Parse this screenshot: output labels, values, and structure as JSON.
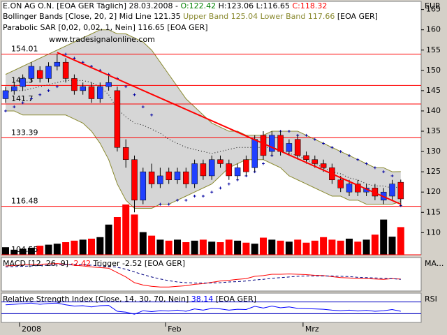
{
  "chart_data": {
    "type": "candlestick",
    "header": {
      "quote": "E.ON AG O.N. [EOA GER  Täglich] 28.03.2008 -",
      "open_text": "O:122.42",
      "hl_text": "H:123.06 L:116.65",
      "close_text": "C:118.32",
      "bb_text": "Bollinger Bands [Close, 20, 2] Mid Line 121.35",
      "bb_bands_text": "Upper Band 125.04 Lower Band 117.66",
      "bb_src": "[EOA GER]",
      "sar_text": "Parabolic SAR [0,02, 0,02, 1, Nein] 116.65 [EOA GER]"
    },
    "watermark": "www.tradesignalonline.com",
    "y_unit": "EUR",
    "ylim": [
      104.55,
      167
    ],
    "yticks": [
      110,
      115,
      120,
      125,
      130,
      135,
      140,
      145,
      150,
      155,
      160,
      165
    ],
    "levels": [
      154.01,
      146.3,
      141.7,
      133.39,
      116.48,
      104.55
    ],
    "x_labels": [
      {
        "index": 0,
        "label": "2008"
      },
      {
        "index": 17,
        "label": "Feb"
      },
      {
        "index": 33,
        "label": "Mrz"
      }
    ],
    "open": [
      143,
      145,
      146,
      148,
      150,
      148,
      151,
      152,
      148,
      145,
      146,
      143,
      146,
      145,
      131,
      128,
      118,
      125,
      122,
      125,
      123,
      125,
      122,
      127,
      124,
      128,
      127,
      124,
      128,
      126,
      134,
      130,
      134,
      130,
      133,
      129,
      128,
      127,
      126,
      123,
      120,
      122,
      120,
      121,
      118,
      119,
      122.42
    ],
    "high": [
      146,
      147,
      149,
      152,
      151,
      152,
      154,
      153,
      149,
      147,
      147,
      147,
      149,
      146,
      133,
      129,
      126,
      127,
      126,
      126,
      126,
      126,
      128,
      128,
      129,
      129,
      128,
      127,
      129,
      134,
      135,
      135,
      135,
      133,
      134,
      130,
      129,
      128,
      127,
      124,
      123,
      123,
      122,
      122,
      121,
      123,
      123.06
    ],
    "low": [
      142,
      144,
      145,
      147,
      147,
      147,
      150,
      147,
      144,
      144,
      142,
      142,
      145,
      130,
      126,
      115,
      117,
      121,
      121,
      122,
      122,
      121,
      121,
      123,
      123,
      126,
      123,
      123,
      124,
      125,
      128,
      129,
      129,
      129,
      128,
      127,
      126,
      125,
      122,
      120,
      119,
      119,
      119,
      118,
      117,
      118,
      116.65
    ],
    "close": [
      145,
      146,
      148,
      151,
      148,
      151,
      152,
      148,
      145,
      146,
      143,
      146,
      147,
      131,
      128,
      118,
      125,
      122,
      124,
      123,
      125,
      122,
      127,
      124,
      128,
      127,
      124,
      126,
      125,
      133,
      129,
      134,
      130,
      132,
      129,
      128,
      127,
      126,
      123,
      121,
      122,
      120,
      121,
      119,
      120,
      122,
      118.32
    ],
    "bull_color": "#2040ff",
    "bear_color": "#ff0000",
    "upper": [
      149,
      150,
      151,
      152,
      153,
      154,
      155,
      156,
      157,
      158,
      159,
      160,
      160,
      159,
      159,
      158,
      157,
      155,
      152,
      149,
      146,
      143,
      141,
      139,
      137,
      136,
      135,
      135,
      134,
      134,
      134,
      135,
      135,
      135,
      135,
      134,
      133,
      132,
      131,
      130,
      129,
      128,
      127,
      126,
      126,
      125,
      125.04
    ],
    "mid": [
      144.5,
      145,
      145,
      145.5,
      146,
      146.5,
      147,
      147.5,
      147.5,
      147.5,
      147,
      146,
      144,
      140.5,
      138.5,
      137,
      136.5,
      135.5,
      134.5,
      133,
      132,
      131,
      130.5,
      130,
      129.5,
      130,
      130.5,
      131,
      131,
      131,
      131,
      131,
      130.5,
      129.5,
      129,
      128,
      127,
      126,
      125,
      124.5,
      123.5,
      123,
      122,
      121.5,
      121.5,
      121,
      121.35
    ],
    "lower": [
      140,
      140,
      139,
      139,
      139,
      139,
      139,
      139,
      138,
      137,
      135,
      132,
      128,
      122,
      118,
      116,
      116,
      116,
      117,
      117,
      118,
      119,
      120,
      121,
      122,
      124,
      126,
      127,
      128,
      128,
      128,
      127,
      126,
      124,
      123,
      122,
      121,
      120,
      119,
      119,
      118,
      118,
      117,
      117,
      117,
      117,
      117.66
    ],
    "band_color": "#8a8a30",
    "band_fill": "#d6d6d6",
    "sar": [
      140,
      141,
      142,
      143,
      144,
      145,
      146,
      154,
      153,
      152,
      151,
      150,
      149,
      148,
      146,
      144,
      141,
      139,
      117,
      117,
      118,
      118,
      119,
      119,
      120,
      121,
      122,
      123,
      124,
      125,
      127,
      129,
      135,
      135,
      134,
      134,
      133,
      132,
      131,
      130,
      129,
      128,
      127,
      126,
      125,
      124,
      116.65
    ],
    "trendline": {
      "start": [
        6,
        154.4
      ],
      "end": [
        46,
        117
      ],
      "color": "#ff0000"
    },
    "volume": [
      15,
      10,
      12,
      14,
      18,
      20,
      22,
      25,
      28,
      30,
      32,
      35,
      60,
      75,
      100,
      80,
      45,
      38,
      30,
      28,
      30,
      25,
      28,
      30,
      26,
      25,
      30,
      28,
      24,
      22,
      34,
      30,
      28,
      26,
      30,
      24,
      28,
      35,
      30,
      28,
      32,
      26,
      30,
      40,
      70,
      36,
      55
    ],
    "macd": {
      "title": "MACD [12, 26, 9]",
      "value_text": "-2.42",
      "trigger_text": "Trigger -2.52",
      "src": "[EOA GER]",
      "axis_label": "MA...",
      "ylim": [
        -6,
        4
      ],
      "macd": [
        1.5,
        1.6,
        1.8,
        2.0,
        2.0,
        2.1,
        2.2,
        2.0,
        1.7,
        1.5,
        1.2,
        1.0,
        0.8,
        -0.5,
        -1.8,
        -3.5,
        -4.2,
        -4.6,
        -4.8,
        -4.8,
        -4.6,
        -4.4,
        -4.0,
        -3.8,
        -3.4,
        -3.0,
        -2.8,
        -2.5,
        -2.3,
        -1.6,
        -1.4,
        -1.0,
        -1.0,
        -0.9,
        -1.0,
        -1.1,
        -1.3,
        -1.4,
        -1.7,
        -2.0,
        -2.1,
        -2.3,
        -2.3,
        -2.4,
        -2.5,
        -2.3,
        -2.42
      ],
      "trigger": [
        1.2,
        1.3,
        1.4,
        1.5,
        1.6,
        1.7,
        1.8,
        1.9,
        1.9,
        1.8,
        1.7,
        1.5,
        1.4,
        1.1,
        0.5,
        -0.3,
        -1.1,
        -1.8,
        -2.4,
        -2.9,
        -3.3,
        -3.5,
        -3.6,
        -3.6,
        -3.6,
        -3.5,
        -3.3,
        -3.2,
        -3.0,
        -2.7,
        -2.5,
        -2.2,
        -2.0,
        -1.8,
        -1.6,
        -1.5,
        -1.5,
        -1.5,
        -1.5,
        -1.6,
        -1.7,
        -1.9,
        -2.0,
        -2.1,
        -2.2,
        -2.3,
        -2.52
      ]
    },
    "rsi": {
      "title": "Relative Strength Index [Close, 14, 30, 70, Nein]",
      "value_text": "38.14",
      "src": "[EOA GER]",
      "axis_label": "RSI",
      "ylim": [
        0,
        100
      ],
      "bounds": [
        30,
        70
      ],
      "values": [
        60,
        62,
        64,
        66,
        62,
        65,
        66,
        60,
        56,
        57,
        53,
        57,
        58,
        38,
        35,
        28,
        40,
        37,
        40,
        39,
        42,
        38,
        46,
        42,
        48,
        46,
        42,
        45,
        44,
        55,
        49,
        56,
        50,
        53,
        48,
        47,
        46,
        45,
        42,
        40,
        42,
        39,
        41,
        38,
        40,
        44,
        38.14
      ]
    }
  }
}
